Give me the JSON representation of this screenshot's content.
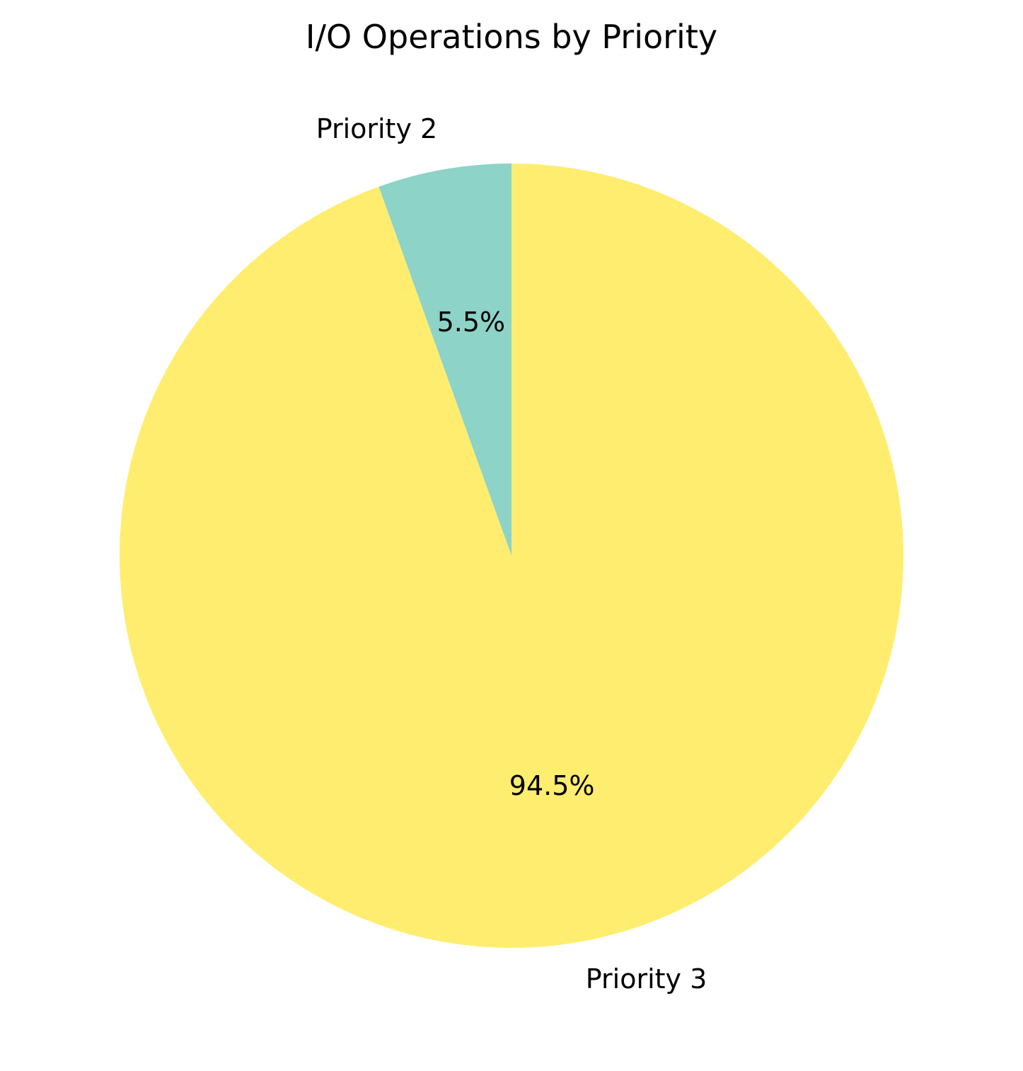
{
  "chart_data": {
    "type": "pie",
    "title": "I/O Operations by Priority",
    "slices": [
      {
        "label": "Priority 2",
        "value": 5.5,
        "pct_label": "5.5%",
        "color": "#8dd3c7"
      },
      {
        "label": "Priority 3",
        "value": 94.5,
        "pct_label": "94.5%",
        "color": "#ffed6f"
      }
    ],
    "start_angle_deg": 90,
    "direction": "counterclockwise",
    "legend": "none"
  }
}
